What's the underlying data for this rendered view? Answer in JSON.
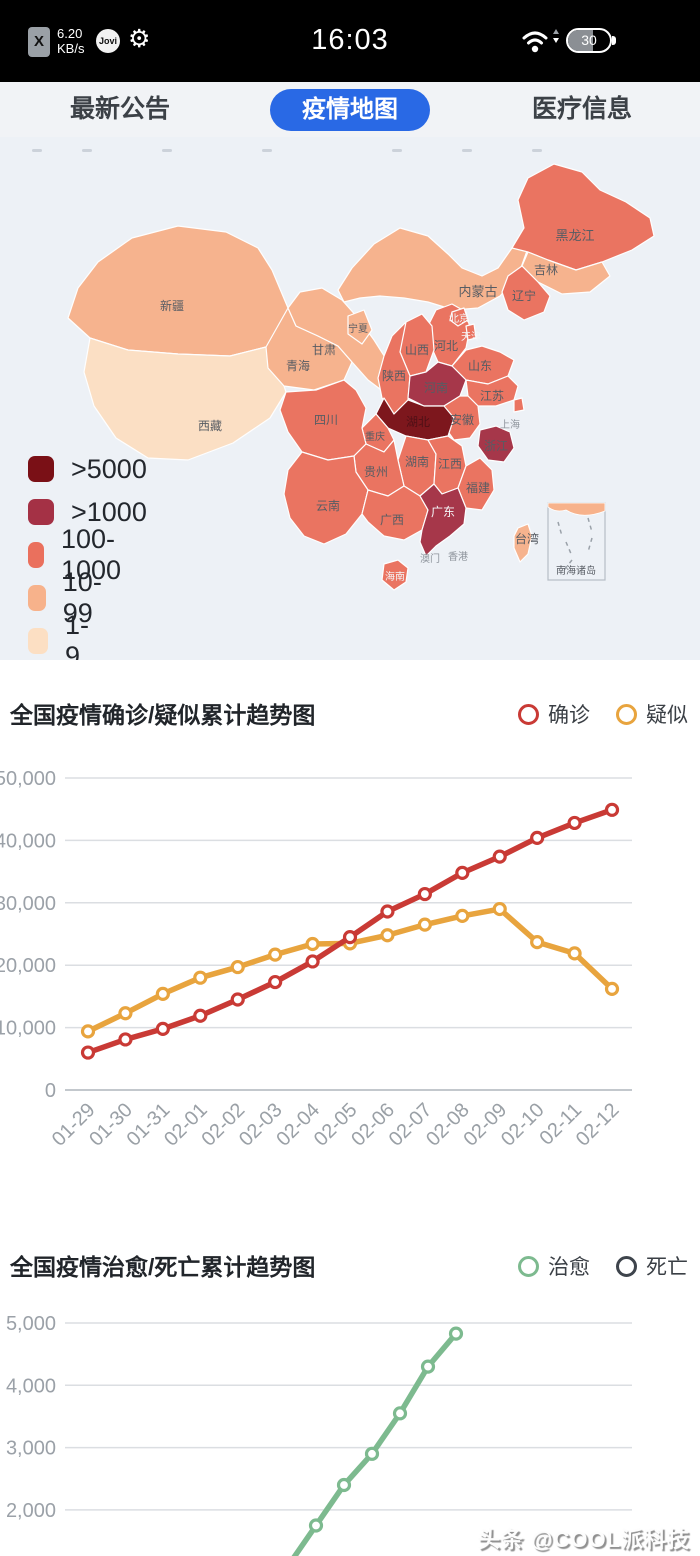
{
  "status_bar": {
    "sim_label": "X",
    "speed_value": "6.20",
    "speed_unit": "KB/s",
    "jovi_label": "Jovi",
    "time": "16:03",
    "battery_level": "30"
  },
  "tabs": {
    "active_color": "#2969e5",
    "items": [
      {
        "label": "最新公告",
        "active": false
      },
      {
        "label": "疫情地图",
        "active": true
      },
      {
        "label": "医疗信息",
        "active": false
      }
    ]
  },
  "legend": {
    "colors": {
      "l1": "#7a1016",
      "l2": "#a43145",
      "l3": "#ea705d",
      "l4": "#f7b28b",
      "l5": "#fcdfc3"
    },
    "items": [
      {
        "label": ">5000",
        "color_key": "l1"
      },
      {
        "label": ">1000",
        "color_key": "l2"
      },
      {
        "label": "100-1000",
        "color_key": "l3"
      },
      {
        "label": "10-99",
        "color_key": "l4"
      },
      {
        "label": "1-9",
        "color_key": "l5"
      }
    ]
  },
  "map": {
    "provinces": {
      "xinjiang": "新疆",
      "xizang": "西藏",
      "qinghai": "青海",
      "gansu": "甘肃",
      "ningxia": "宁夏",
      "neimenggu": "内蒙古",
      "heilongjiang": "黑龙江",
      "jilin": "吉林",
      "liaoning": "辽宁",
      "beijing": "北京",
      "tianjin": "天津",
      "hebei": "河北",
      "shanxi": "山西",
      "shandong": "山东",
      "shaanxi": "陕西",
      "henan": "河南",
      "jiangsu": "江苏",
      "anhui": "安徽",
      "shanghai": "上海",
      "hubei": "湖北",
      "zhejiang": "浙江",
      "chongqing": "重庆",
      "sichuan": "四川",
      "hunan": "湖南",
      "jiangxi": "江西",
      "guizhou": "贵州",
      "yunnan": "云南",
      "fujian": "福建",
      "guangxi": "广西",
      "guangdong": "广东",
      "hainan": "海南",
      "taiwan": "台湾",
      "xianggang": "香港",
      "aomen": "澳门"
    },
    "inset_label": "南海诸岛"
  },
  "watermark": "头条 @COOL派科技",
  "chart_data": [
    {
      "type": "line",
      "title": "全国疫情确诊/疑似累计趋势图",
      "ylim": [
        0,
        50000
      ],
      "grid": true,
      "legend_position": "top-right",
      "yticks": [
        {
          "v": 0,
          "label": "0"
        },
        {
          "v": 10000,
          "label": "10,000"
        },
        {
          "v": 20000,
          "label": "20,000"
        },
        {
          "v": 30000,
          "label": "30,000"
        },
        {
          "v": 40000,
          "label": "40,000"
        },
        {
          "v": 50000,
          "label": "50,000"
        }
      ],
      "x": [
        "01-29",
        "01-30",
        "01-31",
        "02-01",
        "02-02",
        "02-03",
        "02-04",
        "02-05",
        "02-06",
        "02-07",
        "02-08",
        "02-09",
        "02-10",
        "02-11",
        "02-12"
      ],
      "series": [
        {
          "name": "确诊",
          "color": "#c93a35",
          "values": [
            6000,
            8100,
            9800,
            11900,
            14500,
            17300,
            20600,
            24500,
            28600,
            31400,
            34800,
            37400,
            40400,
            42800,
            44900
          ]
        },
        {
          "name": "疑似",
          "color": "#e8a43e",
          "values": [
            9400,
            12300,
            15400,
            18000,
            19700,
            21700,
            23400,
            23500,
            24800,
            26500,
            27900,
            29000,
            23700,
            21900,
            16200
          ]
        }
      ]
    },
    {
      "type": "line",
      "title": "全国疫情治愈/死亡累计趋势图",
      "grid": true,
      "legend_position": "top-right",
      "note": "chart cropped by screenshot bottom edge; x-axis labels not visible",
      "yticks": [
        {
          "v": 2000,
          "label": "2,000"
        },
        {
          "v": 3000,
          "label": "3,000"
        },
        {
          "v": 4000,
          "label": "4,000"
        },
        {
          "v": 5000,
          "label": "5,000"
        }
      ],
      "series": [
        {
          "name": "治愈",
          "color": "#7dba8f",
          "visible_values": [
            1750,
            2400,
            2900,
            3550,
            4300,
            4830
          ]
        },
        {
          "name": "死亡",
          "color": "#3e444c",
          "visible_values": []
        }
      ]
    }
  ]
}
